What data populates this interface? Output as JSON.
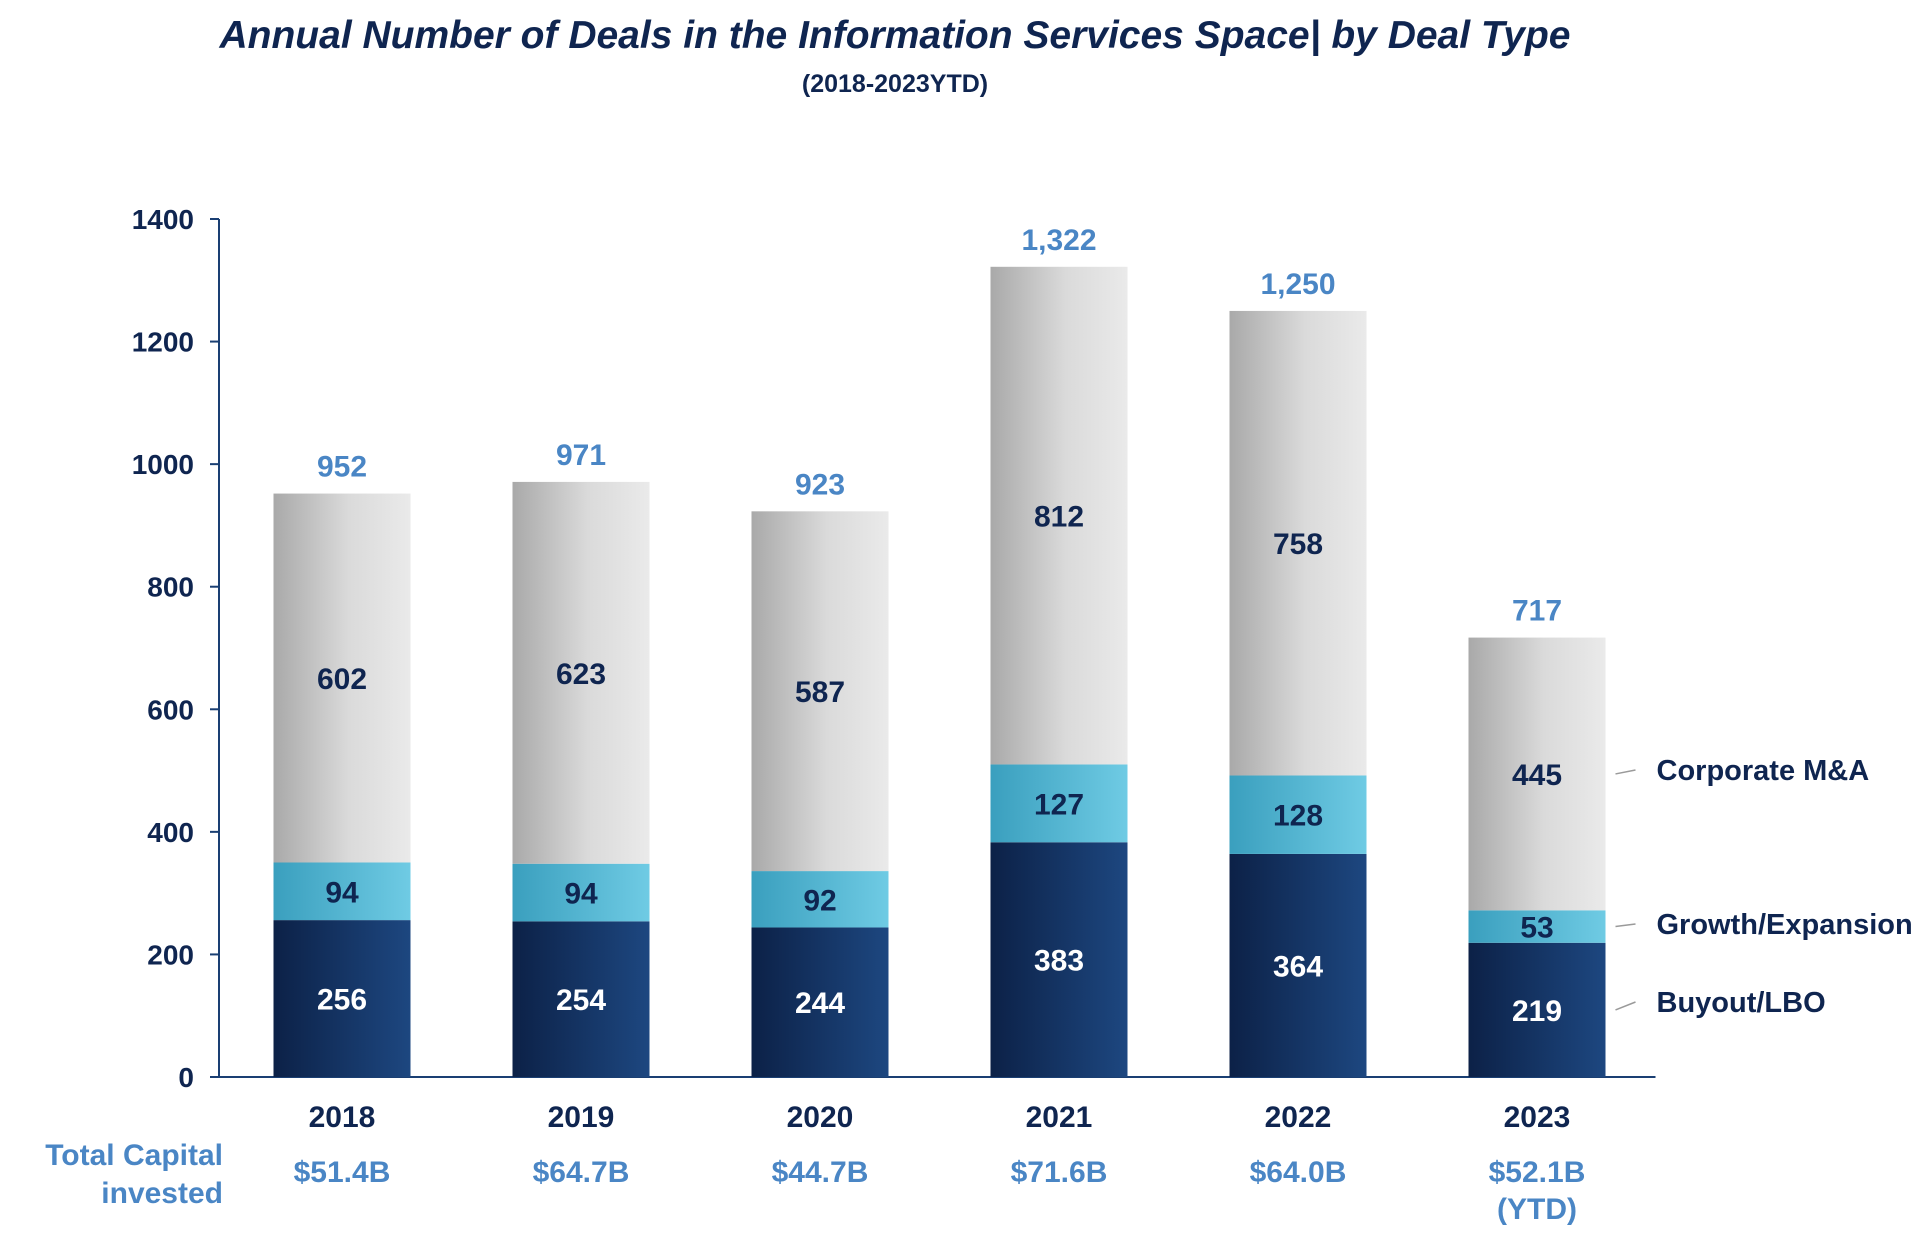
{
  "chart_data": {
    "type": "bar",
    "stacked": true,
    "title": "Annual Number of Deals in the Information Services Space| by Deal Type",
    "subtitle": "(2018-2023YTD)",
    "categories": [
      "2018",
      "2019",
      "2020",
      "2021",
      "2022",
      "2023"
    ],
    "series": [
      {
        "name": "Buyout/LBO",
        "values": [
          256,
          254,
          244,
          383,
          364,
          219
        ],
        "color": "#1a3f73",
        "label_color": "#ffffff"
      },
      {
        "name": "Growth/Expansion",
        "values": [
          94,
          94,
          92,
          127,
          128,
          53
        ],
        "color": "#5ec2dd",
        "label_color": "#0f2550"
      },
      {
        "name": "Corporate M&A",
        "values": [
          602,
          623,
          587,
          812,
          758,
          445
        ],
        "color": "#d6d6d6",
        "label_color": "#0f2550"
      }
    ],
    "totals": [
      "952",
      "971",
      "923",
      "1,322",
      "1,250",
      "717"
    ],
    "ylim": [
      0,
      1400
    ],
    "yticks": [
      0,
      200,
      400,
      600,
      800,
      1000,
      1200,
      1400
    ],
    "xlabel": "",
    "ylabel": "",
    "grid": false,
    "legend_position": "right, beside last bar",
    "colors": {
      "text": "#0f2550",
      "accent": "#4a86c5"
    },
    "capital_label": [
      "Total Capital",
      "invested"
    ],
    "capital_values": [
      [
        "$51.4B"
      ],
      [
        "$64.7B"
      ],
      [
        "$44.7B"
      ],
      [
        "$71.6B"
      ],
      [
        "$64.0B"
      ],
      [
        "$52.1B",
        "(YTD)"
      ]
    ]
  }
}
